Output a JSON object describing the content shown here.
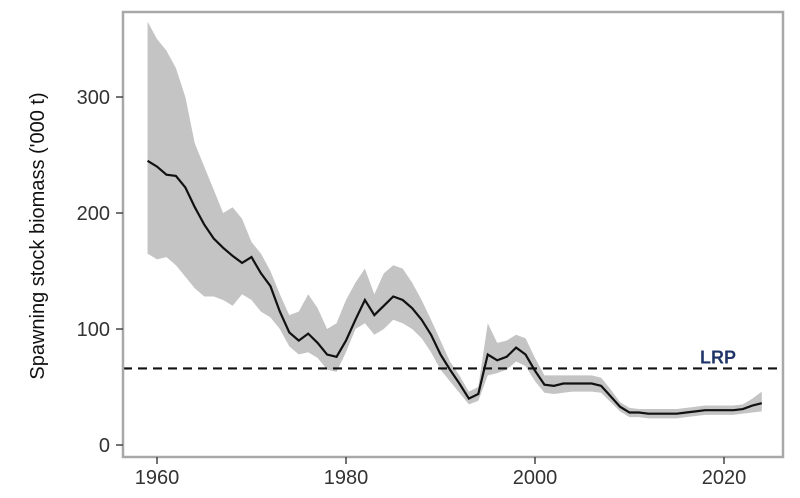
{
  "chart_data": {
    "type": "line",
    "title": "",
    "xlabel": "",
    "ylabel": "Spawning stock biomass ('000 t)",
    "xlim": [
      1955,
      2028
    ],
    "ylim": [
      0,
      375
    ],
    "grid": false,
    "x_ticks": [
      1960,
      1980,
      2000,
      2020
    ],
    "y_ticks": [
      0,
      100,
      200,
      300
    ],
    "year_range": [
      1959,
      2024
    ],
    "series": [
      {
        "name": "median",
        "color": "#111111",
        "values": [
          245,
          240,
          233,
          232,
          222,
          205,
          190,
          178,
          170,
          163,
          157,
          162,
          148,
          137,
          115,
          97,
          90,
          96,
          88,
          78,
          76,
          90,
          108,
          125,
          112,
          120,
          128,
          125,
          118,
          108,
          95,
          78,
          65,
          53,
          40,
          44,
          78,
          73,
          76,
          84,
          78,
          64,
          52,
          51,
          53,
          53,
          53,
          53,
          51,
          42,
          33,
          28,
          28,
          27,
          27,
          27,
          27,
          28,
          29,
          30,
          30,
          30,
          30,
          31,
          34,
          36
        ]
      },
      {
        "name": "upper",
        "values": [
          365,
          350,
          340,
          325,
          300,
          260,
          240,
          220,
          200,
          205,
          195,
          175,
          165,
          150,
          130,
          112,
          115,
          130,
          118,
          100,
          105,
          125,
          140,
          152,
          130,
          148,
          155,
          152,
          140,
          125,
          108,
          90,
          72,
          60,
          46,
          50,
          105,
          88,
          90,
          95,
          92,
          75,
          60,
          60,
          60,
          60,
          60,
          60,
          58,
          48,
          37,
          32,
          31,
          31,
          31,
          31,
          31,
          32,
          33,
          34,
          34,
          34,
          34,
          35,
          40,
          46
        ]
      },
      {
        "name": "lower",
        "values": [
          165,
          160,
          162,
          155,
          145,
          135,
          128,
          128,
          125,
          120,
          130,
          125,
          115,
          110,
          100,
          85,
          78,
          80,
          75,
          65,
          63,
          80,
          100,
          105,
          95,
          100,
          108,
          105,
          100,
          92,
          80,
          65,
          55,
          45,
          35,
          38,
          60,
          62,
          65,
          72,
          68,
          55,
          45,
          44,
          45,
          46,
          46,
          46,
          45,
          37,
          29,
          24,
          24,
          23,
          23,
          23,
          23,
          24,
          25,
          26,
          26,
          26,
          26,
          27,
          28,
          29
        ]
      }
    ],
    "band_color": "#c4c4c4",
    "reference_line": {
      "label": "LRP",
      "value": 66,
      "color": "#1f3568"
    }
  }
}
